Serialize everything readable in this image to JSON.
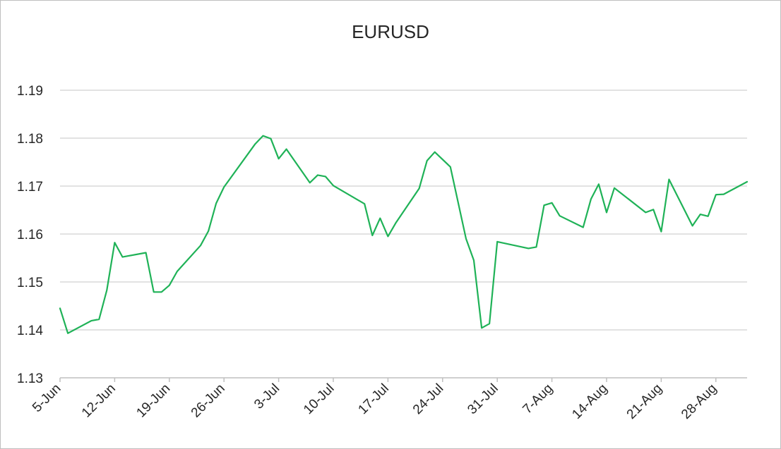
{
  "chart_data": {
    "type": "line",
    "title": "EURUSD",
    "xlabel": "",
    "ylabel": "",
    "ylim": [
      1.13,
      1.19
    ],
    "yticks": [
      1.13,
      1.14,
      1.15,
      1.16,
      1.17,
      1.18,
      1.19
    ],
    "ytick_labels": [
      "1.13",
      "1.14",
      "1.15",
      "1.16",
      "1.17",
      "1.18",
      "1.19"
    ],
    "xlim": [
      "2017-06-05",
      "2017-09-01"
    ],
    "xticks": [
      "2017-06-05",
      "2017-06-12",
      "2017-06-19",
      "2017-06-26",
      "2017-07-03",
      "2017-07-10",
      "2017-07-17",
      "2017-07-24",
      "2017-07-31",
      "2017-08-07",
      "2017-08-14",
      "2017-08-21",
      "2017-08-28"
    ],
    "xtick_labels": [
      "5-Jun",
      "12-Jun",
      "19-Jun",
      "26-Jun",
      "3-Jul",
      "10-Jul",
      "17-Jul",
      "24-Jul",
      "31-Jul",
      "7-Aug",
      "14-Aug",
      "21-Aug",
      "28-Aug"
    ],
    "grid": true,
    "legend": "none",
    "series": [
      {
        "color": "#1fb257",
        "x": [
          "2017-06-05",
          "2017-06-06",
          "2017-06-09",
          "2017-06-10",
          "2017-06-11",
          "2017-06-12",
          "2017-06-13",
          "2017-06-16",
          "2017-06-17",
          "2017-06-18",
          "2017-06-19",
          "2017-06-20",
          "2017-06-23",
          "2017-06-24",
          "2017-06-25",
          "2017-06-26",
          "2017-06-30",
          "2017-07-01",
          "2017-07-02",
          "2017-07-03",
          "2017-07-04",
          "2017-07-07",
          "2017-07-08",
          "2017-07-09",
          "2017-07-10",
          "2017-07-14",
          "2017-07-15",
          "2017-07-16",
          "2017-07-17",
          "2017-07-18",
          "2017-07-21",
          "2017-07-22",
          "2017-07-23",
          "2017-07-25",
          "2017-07-27",
          "2017-07-28",
          "2017-07-29",
          "2017-07-30",
          "2017-07-31",
          "2017-08-04",
          "2017-08-05",
          "2017-08-06",
          "2017-08-07",
          "2017-08-08",
          "2017-08-11",
          "2017-08-12",
          "2017-08-13",
          "2017-08-14",
          "2017-08-15",
          "2017-08-19",
          "2017-08-20",
          "2017-08-21",
          "2017-08-22",
          "2017-08-25",
          "2017-08-26",
          "2017-08-27",
          "2017-08-28",
          "2017-08-29",
          "2017-09-01"
        ],
        "y": [
          1.1445,
          1.1393,
          1.1419,
          1.1422,
          1.1483,
          1.1582,
          1.1552,
          1.1561,
          1.1479,
          1.1479,
          1.1493,
          1.1522,
          1.1576,
          1.1606,
          1.1664,
          1.1698,
          1.1788,
          1.1805,
          1.1799,
          1.1757,
          1.1777,
          1.1707,
          1.1723,
          1.172,
          1.1701,
          1.1663,
          1.1597,
          1.1633,
          1.1595,
          1.1623,
          1.1695,
          1.1753,
          1.1771,
          1.174,
          1.159,
          1.1545,
          1.1404,
          1.1413,
          1.1584,
          1.157,
          1.1573,
          1.166,
          1.1665,
          1.1638,
          1.1614,
          1.1673,
          1.1704,
          1.1645,
          1.1696,
          1.1645,
          1.1651,
          1.1605,
          1.1714,
          1.1617,
          1.1641,
          1.1637,
          1.1682,
          1.1683,
          1.1709
        ]
      }
    ]
  }
}
